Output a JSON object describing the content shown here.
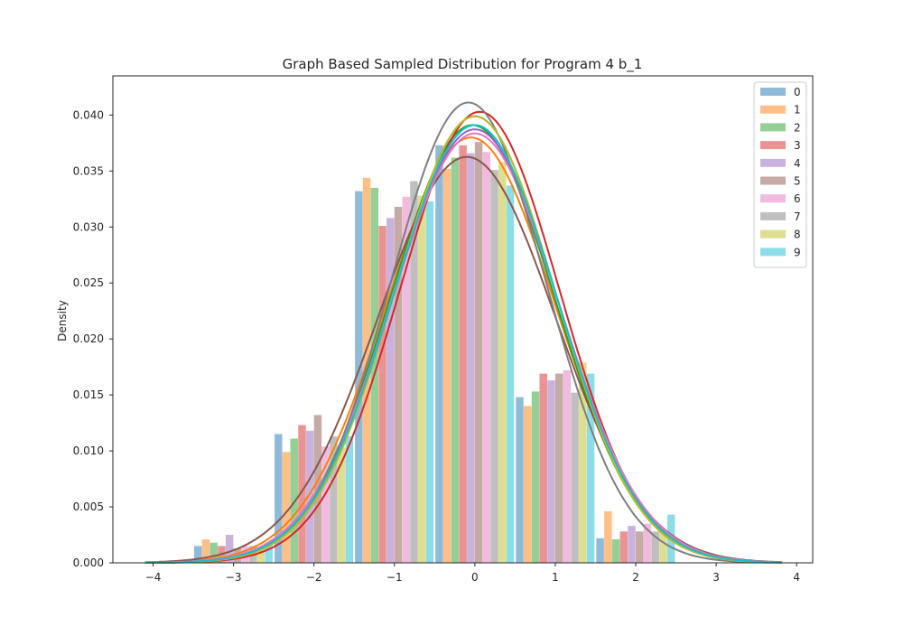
{
  "chart_data": {
    "type": "bar",
    "title": "Graph Based Sampled Distribution for Program 4 b_1",
    "xlabel": "",
    "ylabel": "Density",
    "xlim": [
      -4.5,
      4.2
    ],
    "ylim": [
      0,
      0.0435
    ],
    "xticks": [
      -4,
      -3,
      -2,
      -1,
      0,
      1,
      2,
      3,
      4
    ],
    "xtick_labels": [
      "−4",
      "−3",
      "−2",
      "−1",
      "0",
      "1",
      "2",
      "3",
      "4"
    ],
    "yticks": [
      0.0,
      0.005,
      0.01,
      0.015,
      0.02,
      0.025,
      0.03,
      0.035,
      0.04
    ],
    "ytick_labels": [
      "0.000",
      "0.005",
      "0.010",
      "0.015",
      "0.020",
      "0.025",
      "0.030",
      "0.035",
      "0.040"
    ],
    "grid": false,
    "legend_position": "top-right",
    "bin_centers": [
      -3,
      -2,
      -1,
      0,
      1,
      2,
      3
    ],
    "series": [
      {
        "name": "0",
        "color": "#1f77b4",
        "values": [
          0.0015,
          0.0115,
          0.0332,
          0.0373,
          0.0148,
          0.0022,
          0.0
        ],
        "kde_mean": 0.0,
        "kde_sd": 1.0
      },
      {
        "name": "1",
        "color": "#ff7f0e",
        "values": [
          0.0021,
          0.0099,
          0.0344,
          0.0352,
          0.014,
          0.0046,
          0.0
        ],
        "kde_mean": -0.05,
        "kde_sd": 1.05
      },
      {
        "name": "2",
        "color": "#2ca02c",
        "values": [
          0.0018,
          0.0111,
          0.0335,
          0.0362,
          0.0153,
          0.0021,
          0.0
        ],
        "kde_mean": -0.03,
        "kde_sd": 1.02
      },
      {
        "name": "3",
        "color": "#d62728",
        "values": [
          0.0015,
          0.0123,
          0.0301,
          0.0373,
          0.0169,
          0.0028,
          0.0
        ],
        "kde_mean": 0.06,
        "kde_sd": 0.99
      },
      {
        "name": "4",
        "color": "#9467bd",
        "values": [
          0.0025,
          0.0118,
          0.0308,
          0.0366,
          0.0163,
          0.0033,
          0.0
        ],
        "kde_mean": 0.0,
        "kde_sd": 1.03
      },
      {
        "name": "5",
        "color": "#8c564b",
        "values": [
          0.0013,
          0.0132,
          0.0318,
          0.0376,
          0.0169,
          0.0028,
          0.0
        ],
        "kde_mean": -0.1,
        "kde_sd": 1.1
      },
      {
        "name": "6",
        "color": "#e377c2",
        "values": [
          0.0015,
          0.0104,
          0.0327,
          0.0367,
          0.0172,
          0.0035,
          0.0
        ],
        "kde_mean": 0.0,
        "kde_sd": 1.04
      },
      {
        "name": "7",
        "color": "#7f7f7f",
        "values": [
          0.0015,
          0.0113,
          0.0341,
          0.0351,
          0.0152,
          0.0028,
          0.0
        ],
        "kde_mean": -0.08,
        "kde_sd": 0.97
      },
      {
        "name": "8",
        "color": "#bcbd22",
        "values": [
          0.0012,
          0.0103,
          0.0328,
          0.0358,
          0.0179,
          0.0028,
          0.0
        ],
        "kde_mean": 0.0,
        "kde_sd": 1.0
      },
      {
        "name": "9",
        "color": "#17becf",
        "values": [
          0.0016,
          0.0113,
          0.0323,
          0.0337,
          0.0169,
          0.0043,
          0.0
        ],
        "kde_mean": 0.0,
        "kde_sd": 1.02
      }
    ]
  }
}
